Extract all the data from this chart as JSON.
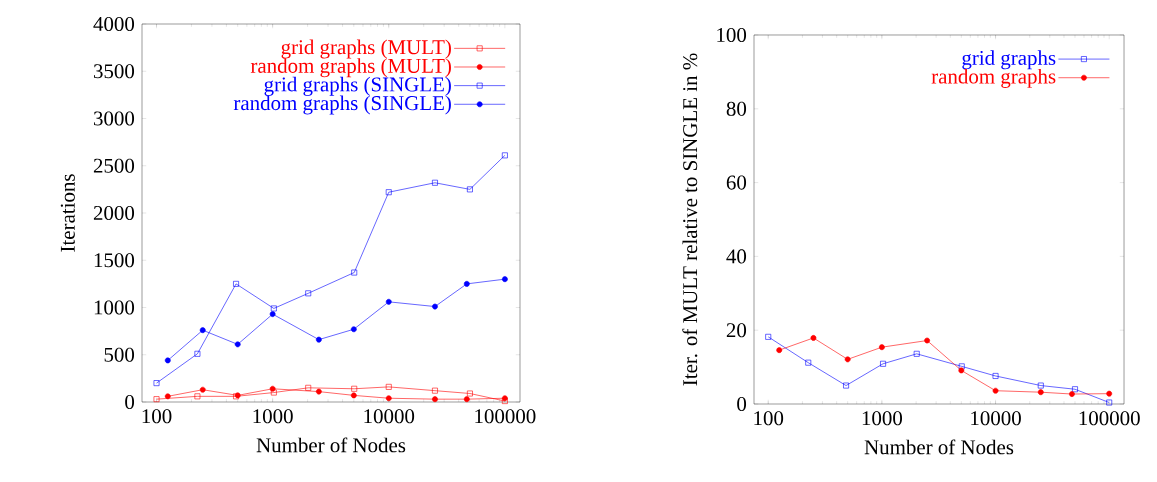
{
  "chart_data": [
    {
      "type": "line",
      "xlabel": "Number of Nodes",
      "ylabel": "Iterations",
      "log": "x",
      "legend": "top right",
      "xlim": [
        75,
        135000
      ],
      "xticks": [
        100,
        1000,
        10000,
        100000
      ],
      "ylim": [
        0,
        4000
      ],
      "yticks": [
        0,
        500,
        1000,
        1500,
        2000,
        2500,
        3000,
        3500,
        4000
      ],
      "series": [
        {
          "name": "grid graphs (MULT)",
          "color": "#ff0000",
          "marker": "square",
          "x": [
            100,
            225,
            484,
            1024,
            2025,
            5041,
            10000,
            25000,
            50000,
            100000
          ],
          "values": [
            30,
            60,
            60,
            100,
            150,
            140,
            160,
            120,
            90,
            10
          ]
        },
        {
          "name": "random graphs (MULT)",
          "color": "#ff0000",
          "marker": "circle",
          "x": [
            125,
            250,
            500,
            1000,
            2500,
            5000,
            10000,
            25000,
            47000,
            100000
          ],
          "values": [
            60,
            130,
            70,
            140,
            110,
            70,
            40,
            30,
            30,
            40
          ]
        },
        {
          "name": "grid graphs (SINGLE)",
          "color": "#0000ff",
          "marker": "square",
          "x": [
            100,
            225,
            484,
            1024,
            2025,
            5041,
            10000,
            25000,
            50000,
            100000
          ],
          "values": [
            200,
            510,
            1250,
            990,
            1150,
            1370,
            2220,
            2320,
            2250,
            2610
          ]
        },
        {
          "name": "random graphs (SINGLE)",
          "color": "#0000ff",
          "marker": "circle",
          "x": [
            125,
            250,
            500,
            1000,
            2500,
            5000,
            10000,
            25000,
            47000,
            100000
          ],
          "values": [
            440,
            760,
            610,
            930,
            660,
            770,
            1060,
            1010,
            1250,
            1300
          ]
        }
      ]
    },
    {
      "type": "line",
      "xlabel": "Number of Nodes",
      "ylabel": "Iter. of MULT relative to SINGLE in %",
      "log": "x",
      "legend": "top right",
      "xlim": [
        75,
        135000
      ],
      "xticks": [
        100,
        1000,
        10000,
        100000
      ],
      "ylim": [
        0,
        100
      ],
      "yticks": [
        0,
        20,
        40,
        60,
        80,
        100
      ],
      "series": [
        {
          "name": "grid graphs",
          "color": "#0000ff",
          "marker": "square",
          "x": [
            100,
            225,
            484,
            1024,
            2025,
            5041,
            10000,
            25000,
            50000,
            100000
          ],
          "values": [
            18.2,
            11.2,
            5.0,
            10.9,
            13.6,
            10.2,
            7.6,
            5.0,
            4.0,
            0.4
          ]
        },
        {
          "name": "random graphs",
          "color": "#ff0000",
          "marker": "circle",
          "x": [
            125,
            250,
            500,
            1000,
            2500,
            5000,
            10000,
            25000,
            47000,
            100000
          ],
          "values": [
            14.6,
            17.9,
            12.1,
            15.4,
            17.2,
            9.1,
            3.6,
            3.2,
            2.7,
            2.8
          ]
        }
      ]
    }
  ]
}
